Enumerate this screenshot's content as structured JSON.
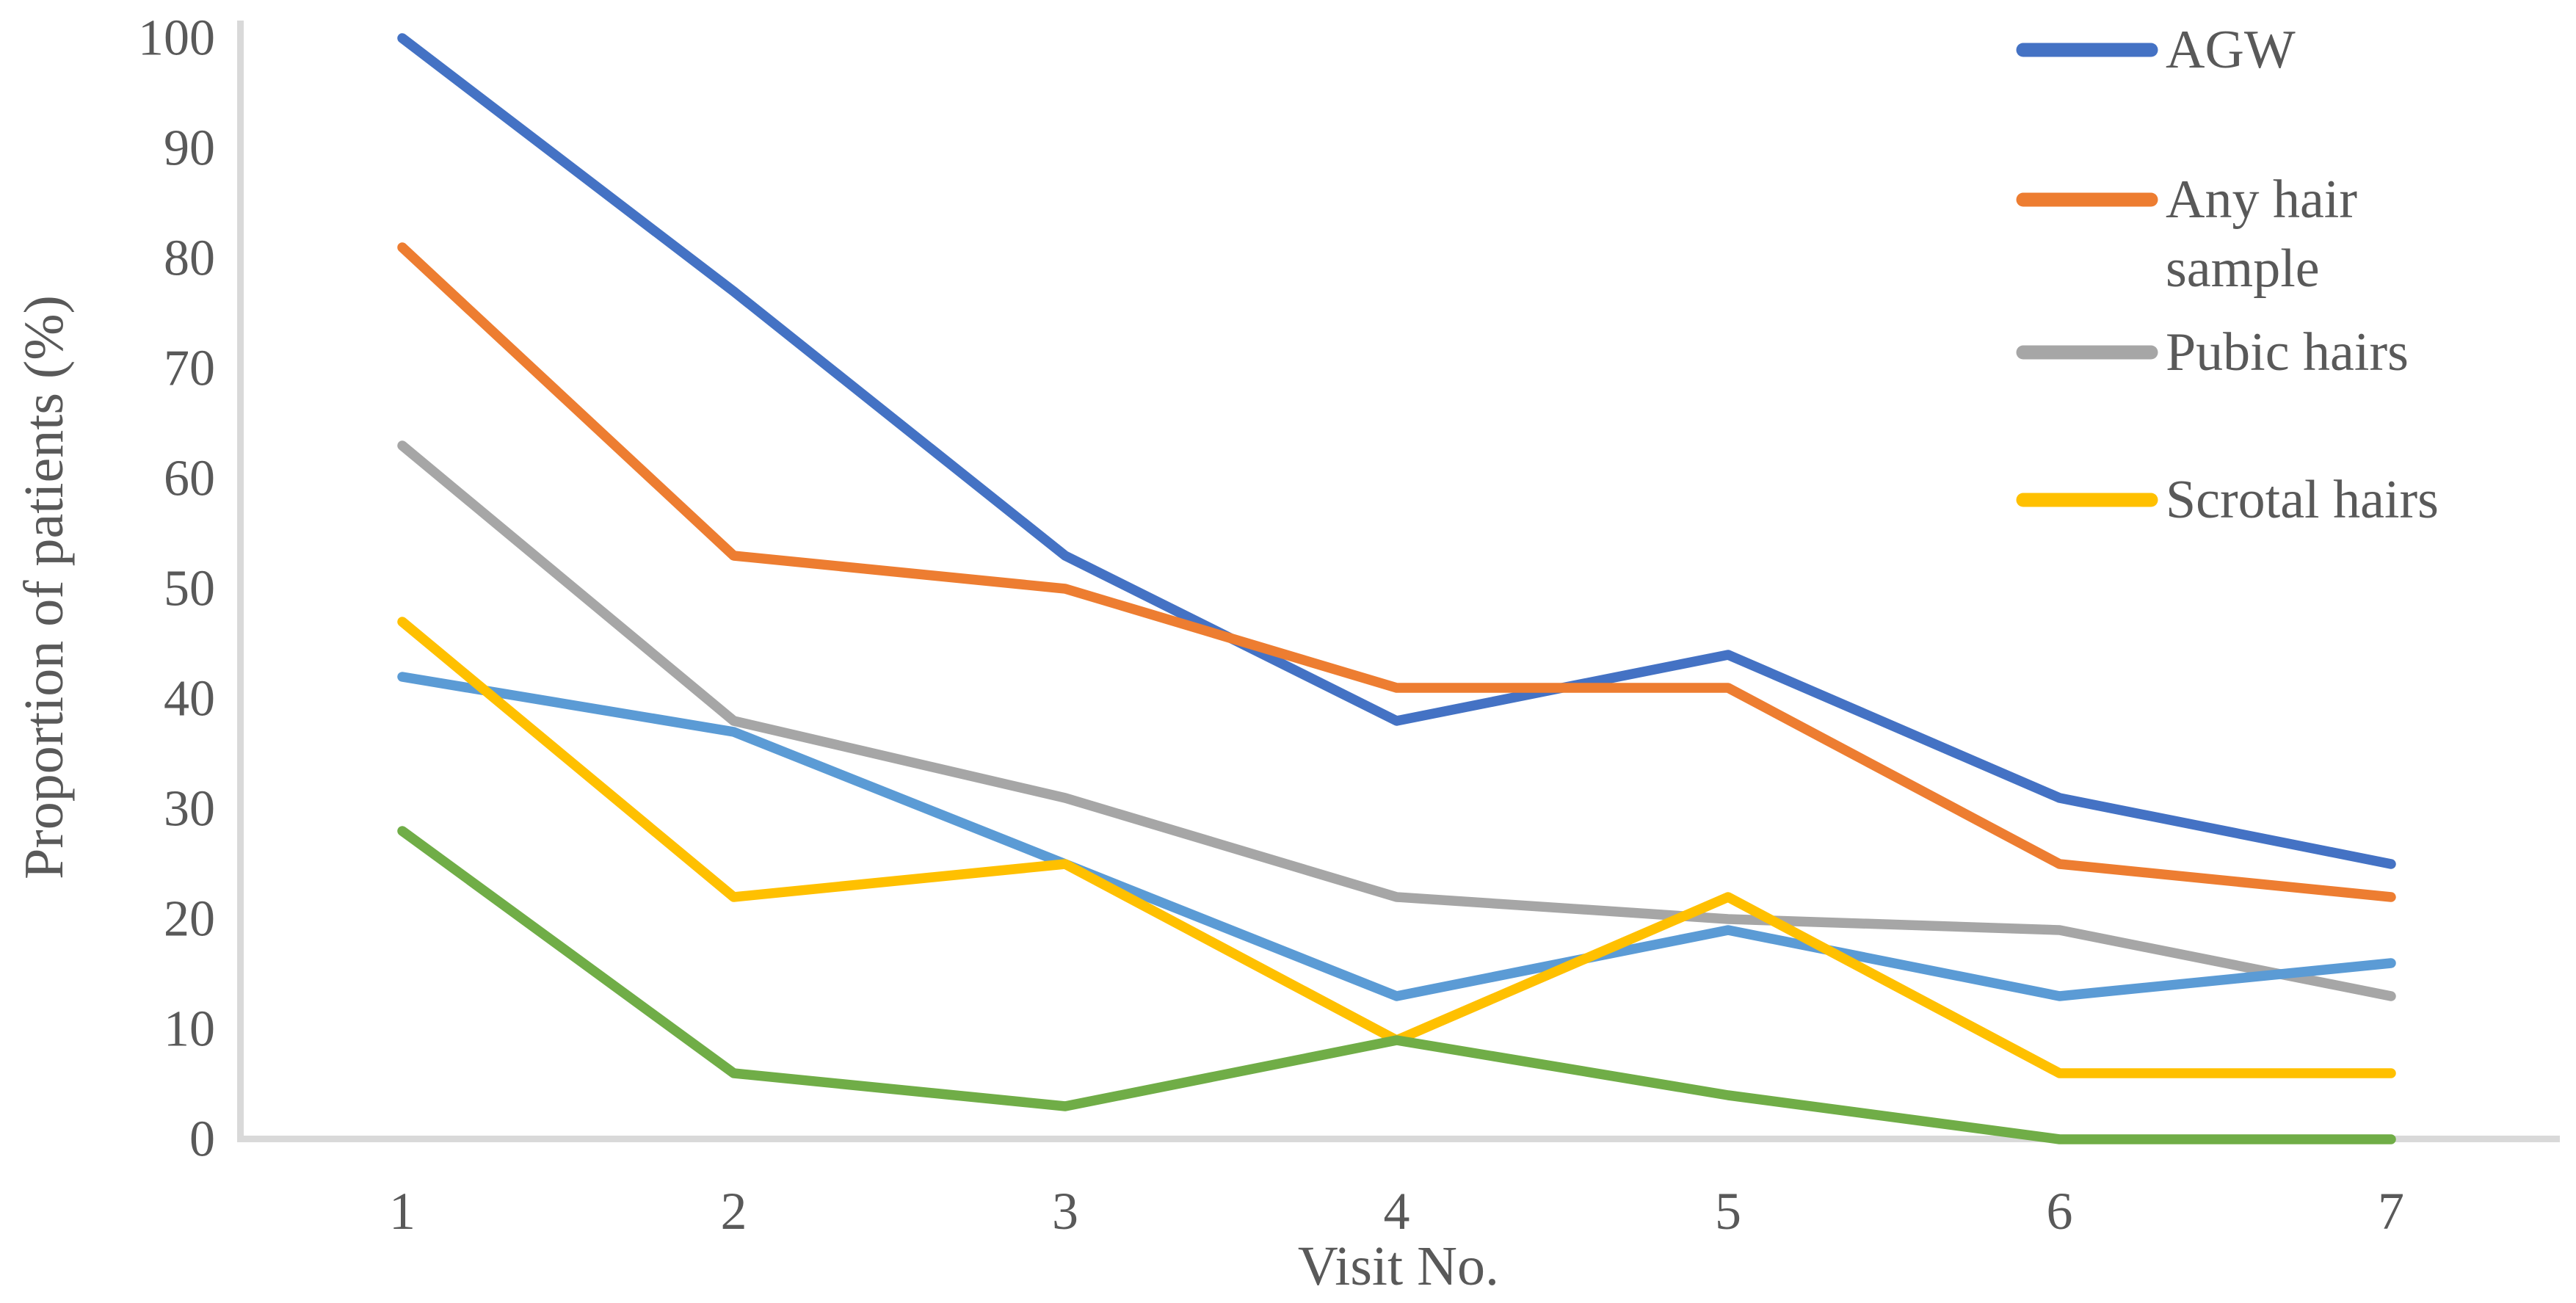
{
  "figure": {
    "background_color": "#ffffff",
    "axis_color": "#D9D9D9",
    "text_color": "#595959"
  },
  "chart_data": {
    "type": "line",
    "title": "",
    "xlabel": "Visit No.",
    "ylabel": "Proportion of patients (%)",
    "categories": [
      1,
      2,
      3,
      4,
      5,
      6,
      7
    ],
    "yticks": [
      0,
      10,
      20,
      30,
      40,
      50,
      60,
      70,
      80,
      90,
      100
    ],
    "ylim": [
      0,
      100
    ],
    "grid": false,
    "legend_position": "top-right",
    "series": [
      {
        "name": "AGW",
        "color": "#4472C4",
        "values": [
          100,
          77,
          53,
          38,
          44,
          31,
          25
        ],
        "in_legend": true,
        "legend_lines": [
          "AGW"
        ]
      },
      {
        "name": "Any hair sample",
        "color": "#ED7D31",
        "values": [
          81,
          53,
          50,
          41,
          41,
          25,
          22
        ],
        "in_legend": true,
        "legend_lines": [
          "Any hair",
          "sample"
        ]
      },
      {
        "name": "Pubic hairs",
        "color": "#A6A6A6",
        "values": [
          63,
          38,
          31,
          22,
          20,
          19,
          13
        ],
        "in_legend": true,
        "legend_lines": [
          "Pubic hairs"
        ]
      },
      {
        "name": "unlabeled-light-blue",
        "color": "#5B9BD5",
        "values": [
          42,
          37,
          25,
          13,
          19,
          13,
          16
        ],
        "in_legend": false,
        "legend_lines": []
      },
      {
        "name": "Scrotal hairs",
        "color": "#FFC000",
        "values": [
          47,
          22,
          25,
          9,
          22,
          6,
          6
        ],
        "in_legend": true,
        "legend_lines": [
          "Scrotal hairs"
        ]
      },
      {
        "name": "unlabeled-green",
        "color": "#70AD47",
        "values": [
          28,
          6,
          3,
          9,
          4,
          0,
          0
        ],
        "in_legend": false,
        "legend_lines": []
      }
    ]
  }
}
